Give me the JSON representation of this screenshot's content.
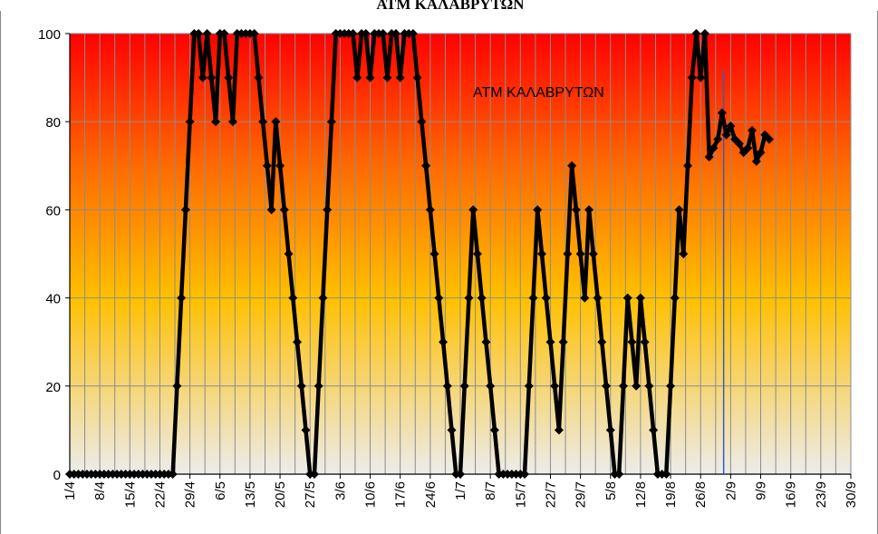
{
  "chart_data": {
    "type": "line",
    "title": "ΑΤΜ ΚΑΛΑΒΡΥΤΩΝ",
    "annotation": "ΑΤΜ ΚΑΛΑΒΡΥΤΩΝ",
    "xlabel": "",
    "ylabel": "",
    "ylim": [
      0,
      100
    ],
    "yticks": [
      0,
      20,
      40,
      60,
      80,
      100
    ],
    "x_tick_labels": [
      "1/4",
      "8/4",
      "15/4",
      "22/4",
      "29/4",
      "6/5",
      "13/5",
      "20/5",
      "27/5",
      "3/6",
      "10/6",
      "17/6",
      "24/6",
      "1/7",
      "8/7",
      "15/7",
      "22/7",
      "29/7",
      "5/8",
      "12/8",
      "19/8",
      "26/8",
      "2/9",
      "9/9",
      "16/9",
      "23/9",
      "30/9"
    ],
    "grid": true,
    "background_gradient": [
      "#ff0000",
      "#ff6a00",
      "#ffc000",
      "#ececec"
    ],
    "line_color": "#000000",
    "marker": "diamond",
    "reference_line_date": "1/9",
    "reference_line_color": "#3a5bbf",
    "series": [
      {
        "points": [
          [
            "1/4",
            0
          ],
          [
            "2/4",
            0
          ],
          [
            "3/4",
            0
          ],
          [
            "4/4",
            0
          ],
          [
            "5/4",
            0
          ],
          [
            "6/4",
            0
          ],
          [
            "7/4",
            0
          ],
          [
            "8/4",
            0
          ],
          [
            "9/4",
            0
          ],
          [
            "10/4",
            0
          ],
          [
            "11/4",
            0
          ],
          [
            "12/4",
            0
          ],
          [
            "13/4",
            0
          ],
          [
            "14/4",
            0
          ],
          [
            "15/4",
            0
          ],
          [
            "16/4",
            0
          ],
          [
            "17/4",
            0
          ],
          [
            "18/4",
            0
          ],
          [
            "19/4",
            0
          ],
          [
            "20/4",
            0
          ],
          [
            "21/4",
            0
          ],
          [
            "22/4",
            0
          ],
          [
            "23/4",
            0
          ],
          [
            "24/4",
            0
          ],
          [
            "25/4",
            0
          ],
          [
            "26/4",
            20
          ],
          [
            "27/4",
            40
          ],
          [
            "28/4",
            60
          ],
          [
            "29/4",
            80
          ],
          [
            "30/4",
            100
          ],
          [
            "1/5",
            100
          ],
          [
            "2/5",
            90
          ],
          [
            "3/5",
            100
          ],
          [
            "4/5",
            90
          ],
          [
            "5/5",
            80
          ],
          [
            "6/5",
            100
          ],
          [
            "7/5",
            100
          ],
          [
            "8/5",
            90
          ],
          [
            "9/5",
            80
          ],
          [
            "10/5",
            100
          ],
          [
            "11/5",
            100
          ],
          [
            "12/5",
            100
          ],
          [
            "13/5",
            100
          ],
          [
            "14/5",
            100
          ],
          [
            "15/5",
            90
          ],
          [
            "16/5",
            80
          ],
          [
            "17/5",
            70
          ],
          [
            "18/5",
            60
          ],
          [
            "19/5",
            80
          ],
          [
            "20/5",
            70
          ],
          [
            "21/5",
            60
          ],
          [
            "22/5",
            50
          ],
          [
            "23/5",
            40
          ],
          [
            "24/5",
            30
          ],
          [
            "25/5",
            20
          ],
          [
            "26/5",
            10
          ],
          [
            "27/5",
            0
          ],
          [
            "28/5",
            0
          ],
          [
            "29/5",
            20
          ],
          [
            "30/5",
            40
          ],
          [
            "31/5",
            60
          ],
          [
            "1/6",
            80
          ],
          [
            "2/6",
            100
          ],
          [
            "3/6",
            100
          ],
          [
            "4/6",
            100
          ],
          [
            "5/6",
            100
          ],
          [
            "6/6",
            100
          ],
          [
            "7/6",
            90
          ],
          [
            "8/6",
            100
          ],
          [
            "9/6",
            100
          ],
          [
            "10/6",
            90
          ],
          [
            "11/6",
            100
          ],
          [
            "12/6",
            100
          ],
          [
            "13/6",
            100
          ],
          [
            "14/6",
            90
          ],
          [
            "15/6",
            100
          ],
          [
            "16/6",
            100
          ],
          [
            "17/6",
            90
          ],
          [
            "18/6",
            100
          ],
          [
            "19/6",
            100
          ],
          [
            "20/6",
            100
          ],
          [
            "21/6",
            90
          ],
          [
            "22/6",
            80
          ],
          [
            "23/6",
            70
          ],
          [
            "24/6",
            60
          ],
          [
            "25/6",
            50
          ],
          [
            "26/6",
            40
          ],
          [
            "27/6",
            30
          ],
          [
            "28/6",
            20
          ],
          [
            "29/6",
            10
          ],
          [
            "30/6",
            0
          ],
          [
            "1/7",
            0
          ],
          [
            "2/7",
            20
          ],
          [
            "3/7",
            40
          ],
          [
            "4/7",
            60
          ],
          [
            "5/7",
            50
          ],
          [
            "6/7",
            40
          ],
          [
            "7/7",
            30
          ],
          [
            "8/7",
            20
          ],
          [
            "9/7",
            10
          ],
          [
            "10/7",
            0
          ],
          [
            "11/7",
            0
          ],
          [
            "12/7",
            0
          ],
          [
            "13/7",
            0
          ],
          [
            "14/7",
            0
          ],
          [
            "15/7",
            0
          ],
          [
            "16/7",
            0
          ],
          [
            "17/7",
            20
          ],
          [
            "18/7",
            40
          ],
          [
            "19/7",
            60
          ],
          [
            "20/7",
            50
          ],
          [
            "21/7",
            40
          ],
          [
            "22/7",
            30
          ],
          [
            "23/7",
            20
          ],
          [
            "24/7",
            10
          ],
          [
            "25/7",
            30
          ],
          [
            "26/7",
            50
          ],
          [
            "27/7",
            70
          ],
          [
            "28/7",
            60
          ],
          [
            "29/7",
            50
          ],
          [
            "30/7",
            40
          ],
          [
            "31/7",
            60
          ],
          [
            "1/8",
            50
          ],
          [
            "2/8",
            40
          ],
          [
            "3/8",
            30
          ],
          [
            "4/8",
            20
          ],
          [
            "5/8",
            10
          ],
          [
            "6/8",
            0
          ],
          [
            "7/8",
            0
          ],
          [
            "8/8",
            20
          ],
          [
            "9/8",
            40
          ],
          [
            "10/8",
            30
          ],
          [
            "11/8",
            20
          ],
          [
            "12/8",
            40
          ],
          [
            "13/8",
            30
          ],
          [
            "14/8",
            20
          ],
          [
            "15/8",
            10
          ],
          [
            "16/8",
            0
          ],
          [
            "17/8",
            0
          ],
          [
            "18/8",
            0
          ],
          [
            "19/8",
            20
          ],
          [
            "20/8",
            40
          ],
          [
            "21/8",
            60
          ],
          [
            "22/8",
            50
          ],
          [
            "23/8",
            70
          ],
          [
            "24/8",
            90
          ],
          [
            "25/8",
            100
          ],
          [
            "26/8",
            90
          ],
          [
            "27/8",
            100
          ],
          [
            "28/8",
            72
          ],
          [
            "29/8",
            74
          ],
          [
            "30/8",
            76
          ],
          [
            "31/8",
            82
          ],
          [
            "1/9",
            77
          ],
          [
            "2/9",
            79
          ],
          [
            "3/9",
            76
          ],
          [
            "4/9",
            75
          ],
          [
            "5/9",
            73
          ],
          [
            "6/9",
            74
          ],
          [
            "7/9",
            78
          ],
          [
            "8/9",
            71
          ],
          [
            "9/9",
            73
          ],
          [
            "10/9",
            77
          ],
          [
            "11/9",
            76
          ]
        ]
      }
    ]
  }
}
